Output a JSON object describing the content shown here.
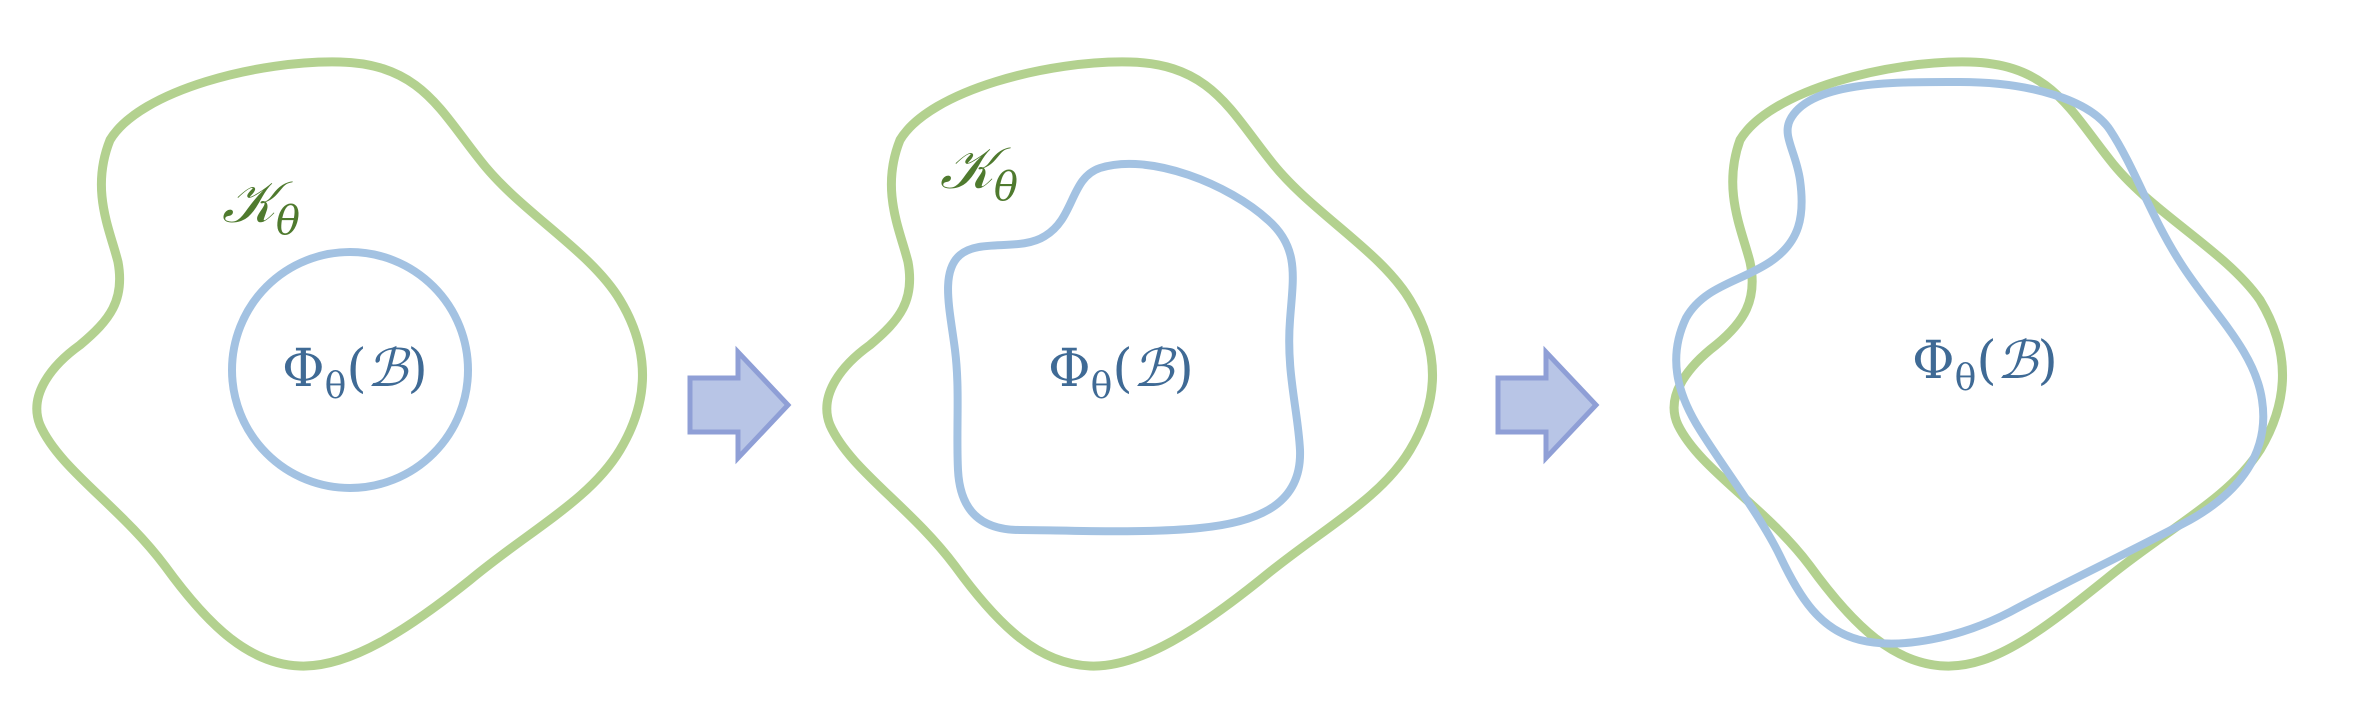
{
  "colors": {
    "region_stroke": "#b3d18f",
    "image_stroke": "#a3c2e2",
    "arrow_fill": "#b8c5e6",
    "arrow_stroke": "#8f9fd6",
    "k_label": "#4f7a2e",
    "phi_label": "#3f6a95"
  },
  "panels": [
    {
      "k_symbol": "𝒦",
      "k_sub": "θ",
      "phi_symbol": "Φ",
      "phi_sub": "θ",
      "phi_arg_open": "(",
      "phi_arg": "ℬ",
      "phi_arg_close": ")"
    },
    {
      "k_symbol": "𝒦",
      "k_sub": "θ",
      "phi_symbol": "Φ",
      "phi_sub": "θ",
      "phi_arg_open": "(",
      "phi_arg": "ℬ",
      "phi_arg_close": ")"
    },
    {
      "phi_symbol": "Φ",
      "phi_sub": "θ",
      "phi_arg_open": "(",
      "phi_arg": "ℬ",
      "phi_arg_close": ")"
    }
  ],
  "arrows": [
    {
      "direction": "right"
    },
    {
      "direction": "right"
    }
  ]
}
